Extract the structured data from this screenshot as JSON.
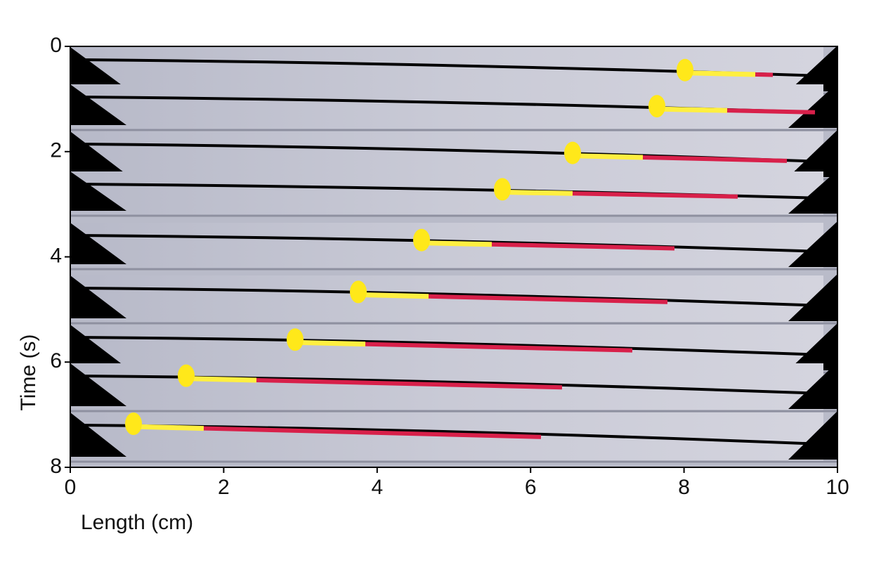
{
  "chart_data": {
    "type": "image",
    "xlabel": "Length (cm)",
    "ylabel": "Time (s)",
    "xlim": [
      0,
      10
    ],
    "ylim": [
      0,
      8
    ],
    "yinvert": true,
    "xticks": [
      0,
      2,
      4,
      6,
      8,
      10
    ],
    "yticks": [
      0,
      2,
      4,
      6,
      8
    ]
  }
}
